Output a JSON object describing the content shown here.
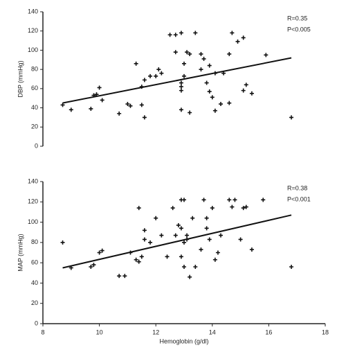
{
  "chart_data": [
    {
      "type": "scatter",
      "ylabel": "DBP (mmHg)",
      "annotations": [
        "R=0.35",
        "P<0.005"
      ],
      "xlim": [
        8,
        18
      ],
      "ylim": [
        0,
        140
      ],
      "yticks": [
        0,
        20,
        40,
        60,
        80,
        100,
        120,
        140
      ],
      "color": "#111111",
      "x": [
        8.7,
        9.0,
        9.7,
        9.8,
        9.9,
        10.0,
        10.1,
        10.7,
        11.0,
        11.1,
        11.3,
        11.5,
        11.6,
        11.5,
        11.6,
        11.8,
        12.0,
        12.1,
        12.2,
        12.5,
        12.7,
        12.9,
        12.7,
        12.9,
        12.9,
        12.9,
        12.9,
        13.0,
        13.0,
        13.1,
        13.2,
        13.2,
        13.4,
        13.6,
        13.6,
        13.7,
        13.8,
        13.9,
        13.9,
        14.1,
        14.0,
        14.1,
        14.3,
        14.4,
        14.6,
        14.6,
        14.7,
        14.9,
        15.1,
        15.1,
        15.2,
        15.4,
        15.9,
        16.8
      ],
      "values": [
        43,
        38,
        39,
        53,
        54,
        61,
        48,
        34,
        44,
        42,
        86,
        43,
        30,
        62,
        69,
        73,
        73,
        80,
        76,
        116,
        116,
        118,
        98,
        66,
        62,
        58,
        38,
        73,
        86,
        98,
        96,
        35,
        118,
        80,
        96,
        91,
        66,
        57,
        84,
        76,
        51,
        37,
        44,
        76,
        96,
        45,
        118,
        109,
        113,
        58,
        64,
        55,
        95,
        30
      ],
      "fit": {
        "x": [
          8.7,
          16.8
        ],
        "y": [
          45,
          92
        ]
      }
    },
    {
      "type": "scatter",
      "ylabel": "MAP (mmHg)",
      "xlabel": "Hemoglobin (g/dl)",
      "annotations": [
        "R=0.38",
        "P<0.001"
      ],
      "xlim": [
        8,
        18
      ],
      "xticks": [
        8,
        10,
        12,
        14,
        16,
        18
      ],
      "ylim": [
        0,
        140
      ],
      "yticks": [
        0,
        20,
        40,
        60,
        80,
        100,
        120,
        140
      ],
      "color": "#111111",
      "x": [
        8.7,
        9.0,
        9.7,
        9.8,
        10.0,
        10.1,
        10.7,
        10.9,
        11.1,
        11.3,
        11.4,
        11.4,
        11.5,
        11.6,
        11.6,
        11.8,
        12.0,
        12.2,
        12.4,
        12.6,
        12.7,
        12.8,
        12.9,
        12.9,
        13.0,
        12.9,
        13.0,
        13.0,
        13.1,
        13.1,
        13.2,
        13.3,
        13.4,
        13.6,
        13.7,
        13.8,
        13.8,
        13.9,
        14.0,
        14.1,
        14.2,
        14.3,
        14.6,
        14.7,
        14.8,
        15.0,
        15.1,
        15.2,
        15.4,
        15.8,
        16.8
      ],
      "values": [
        80,
        55,
        56,
        58,
        70,
        72,
        47,
        47,
        70,
        63,
        114,
        61,
        66,
        92,
        83,
        80,
        104,
        87,
        66,
        114,
        87,
        97,
        122,
        94,
        80,
        66,
        56,
        122,
        87,
        83,
        46,
        104,
        56,
        73,
        122,
        104,
        94,
        83,
        114,
        63,
        70,
        87,
        122,
        115,
        122,
        83,
        114,
        115,
        73,
        122,
        56
      ],
      "fit": {
        "x": [
          8.7,
          16.8
        ],
        "y": [
          55,
          107
        ]
      }
    }
  ]
}
